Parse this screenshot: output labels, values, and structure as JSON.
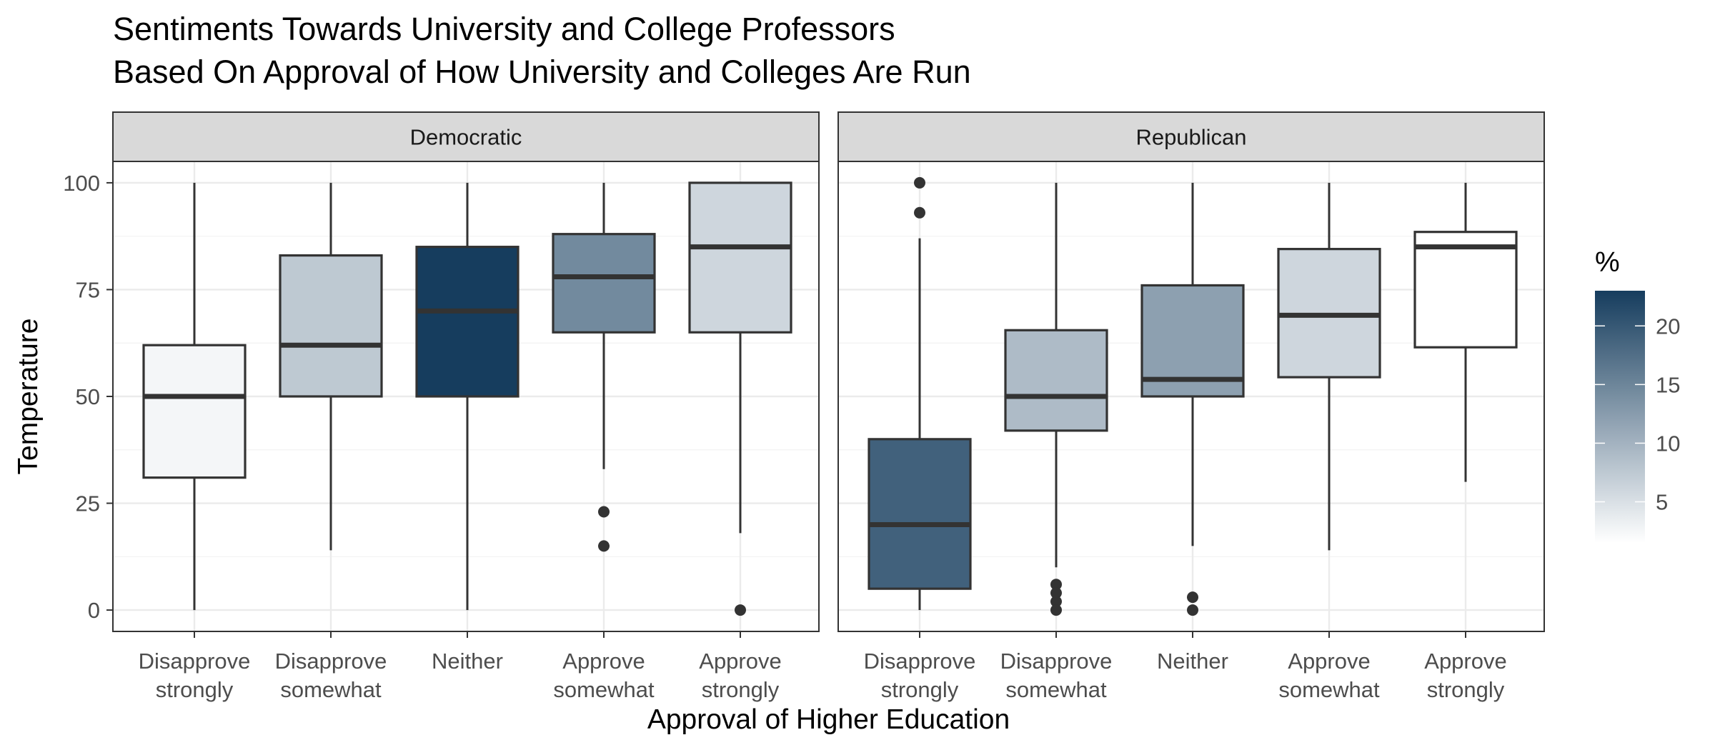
{
  "chart_data": {
    "type": "boxplot",
    "title_lines": [
      "Sentiments Towards University and College Professors",
      "Based On Approval of How University and Colleges Are Run"
    ],
    "xlabel": "Approval of Higher Education",
    "ylabel": "Temperature",
    "ylim": [
      -5,
      105
    ],
    "y_ticks": [
      0,
      25,
      50,
      75,
      100
    ],
    "grid": true,
    "categories": [
      [
        "Disapprove",
        "strongly"
      ],
      [
        "Disapprove",
        "somewhat"
      ],
      [
        "Neither"
      ],
      [
        "Approve",
        "somewhat"
      ],
      [
        "Approve",
        "strongly"
      ]
    ],
    "fill_scale": {
      "title": "%",
      "low_color": "#ffffff",
      "high_color": "#163d5e",
      "range": [
        1.5,
        23
      ],
      "breaks": [
        5,
        10,
        15,
        20
      ],
      "legend_position": "right"
    },
    "facets": [
      {
        "label": "Democratic",
        "boxes": [
          {
            "category": "Disapprove strongly",
            "pct": 2.5,
            "min": 0,
            "q1": 31,
            "median": 50,
            "q3": 62,
            "max": 100,
            "outliers": []
          },
          {
            "category": "Disapprove somewhat",
            "pct": 7.5,
            "min": 14,
            "q1": 50,
            "median": 62,
            "q3": 83,
            "max": 100,
            "outliers": []
          },
          {
            "category": "Neither",
            "pct": 23,
            "min": 0,
            "q1": 50,
            "median": 70,
            "q3": 85,
            "max": 100,
            "outliers": []
          },
          {
            "category": "Approve somewhat",
            "pct": 14.5,
            "min": 33,
            "q1": 65,
            "median": 78,
            "q3": 88,
            "max": 100,
            "outliers": [
              23,
              15
            ]
          },
          {
            "category": "Approve strongly",
            "pct": 6,
            "min": 18,
            "q1": 65,
            "median": 85,
            "q3": 100,
            "max": 100,
            "outliers": [
              0
            ]
          }
        ]
      },
      {
        "label": "Republican",
        "boxes": [
          {
            "category": "Disapprove strongly",
            "pct": 19,
            "min": 0,
            "q1": 5,
            "median": 20,
            "q3": 40,
            "max": 87,
            "outliers": [
              100,
              93
            ]
          },
          {
            "category": "Disapprove somewhat",
            "pct": 9,
            "min": 10,
            "q1": 42,
            "median": 50,
            "q3": 65.5,
            "max": 100,
            "outliers": [
              6,
              4,
              2,
              0
            ]
          },
          {
            "category": "Neither",
            "pct": 12,
            "min": 15,
            "q1": 50,
            "median": 54,
            "q3": 76,
            "max": 100,
            "outliers": [
              3,
              0
            ]
          },
          {
            "category": "Approve somewhat",
            "pct": 6,
            "min": 14,
            "q1": 54.5,
            "median": 69,
            "q3": 84.5,
            "max": 100,
            "outliers": []
          },
          {
            "category": "Approve strongly",
            "pct": 1.5,
            "min": 30,
            "q1": 61.5,
            "median": 85,
            "q3": 88.5,
            "max": 100,
            "outliers": []
          }
        ]
      }
    ]
  }
}
